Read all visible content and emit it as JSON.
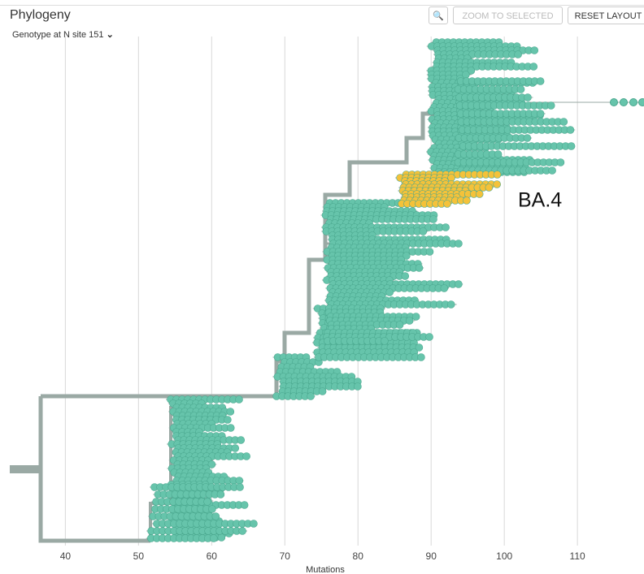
{
  "header": {
    "title": "Phylogeny",
    "color_by": "Genotype at N site 151"
  },
  "toolbar": {
    "zoom_to_selected": "ZOOM TO SELECTED",
    "reset_layout": "RESET LAYOUT"
  },
  "chart_data": {
    "type": "tree",
    "xlabel": "Mutations",
    "xlim": [
      32.4,
      119.1
    ],
    "xticks": [
      40,
      50,
      60,
      70,
      80,
      90,
      100,
      110
    ],
    "grid": true,
    "annotation": "BA.4",
    "colors": {
      "main": "#66c4ab",
      "highlight": "#f4c23a",
      "branch": "#9aa9a4"
    }
  }
}
